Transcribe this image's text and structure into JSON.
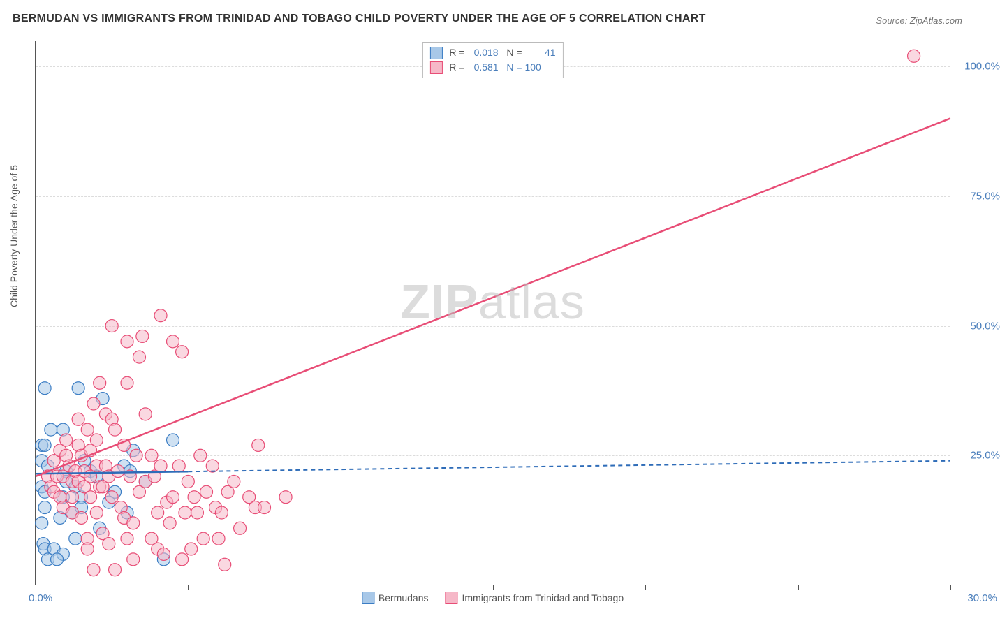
{
  "title": "BERMUDAN VS IMMIGRANTS FROM TRINIDAD AND TOBAGO CHILD POVERTY UNDER THE AGE OF 5 CORRELATION CHART",
  "source_prefix": "Source:",
  "source_name": "ZipAtlas.com",
  "ylabel": "Child Poverty Under the Age of 5",
  "watermark_bold": "ZIP",
  "watermark_rest": "atlas",
  "chart": {
    "type": "scatter",
    "xlim": [
      0,
      30
    ],
    "ylim": [
      0,
      105
    ],
    "yticks": [
      {
        "value": 25,
        "label": "25.0%"
      },
      {
        "value": 50,
        "label": "50.0%"
      },
      {
        "value": 75,
        "label": "75.0%"
      },
      {
        "value": 100,
        "label": "100.0%"
      }
    ],
    "xticks": [
      5,
      10,
      15,
      20,
      25,
      30
    ],
    "xlabel_min": "0.0%",
    "xlabel_max": "30.0%",
    "marker_radius": 9,
    "series": [
      {
        "name": "Bermudans",
        "fill": "#a8c8e8",
        "fill_opacity": 0.55,
        "stroke": "#3b7dc4",
        "r_value": "0.018",
        "n_value": "41",
        "line": {
          "solid_end_x": 5,
          "y_at_0": 21.5,
          "y_at_30": 24.0,
          "color": "#2e6cb8",
          "width": 2.5,
          "dash": "6 5"
        },
        "points": [
          [
            0.2,
            27
          ],
          [
            0.3,
            27
          ],
          [
            0.2,
            24
          ],
          [
            0.4,
            23
          ],
          [
            0.2,
            19
          ],
          [
            0.3,
            18
          ],
          [
            0.3,
            15
          ],
          [
            0.2,
            12
          ],
          [
            0.25,
            8
          ],
          [
            0.3,
            7
          ],
          [
            0.6,
            7
          ],
          [
            0.9,
            6
          ],
          [
            0.4,
            5
          ],
          [
            0.7,
            5
          ],
          [
            0.3,
            38
          ],
          [
            0.5,
            30
          ],
          [
            0.9,
            30
          ],
          [
            1.4,
            38
          ],
          [
            1.0,
            22
          ],
          [
            1.0,
            20
          ],
          [
            1.3,
            19
          ],
          [
            0.9,
            17
          ],
          [
            1.5,
            17
          ],
          [
            1.2,
            14
          ],
          [
            0.8,
            13
          ],
          [
            1.6,
            24
          ],
          [
            1.8,
            22
          ],
          [
            1.5,
            15
          ],
          [
            1.3,
            9
          ],
          [
            2.0,
            21
          ],
          [
            2.2,
            36
          ],
          [
            2.6,
            18
          ],
          [
            2.4,
            16
          ],
          [
            2.9,
            23
          ],
          [
            3.1,
            22
          ],
          [
            3.2,
            26
          ],
          [
            3.6,
            20
          ],
          [
            4.5,
            28
          ],
          [
            4.2,
            5
          ],
          [
            3.0,
            14
          ],
          [
            2.1,
            11
          ]
        ]
      },
      {
        "name": "Immigrants from Trinidad and Tobago",
        "fill": "#f6b8c8",
        "fill_opacity": 0.55,
        "stroke": "#e84d76",
        "r_value": "0.581",
        "n_value": "100",
        "line": {
          "solid_end_x": 30,
          "y_at_0": 21,
          "y_at_30": 90,
          "color": "#e84d76",
          "width": 2.5,
          "dash": null
        },
        "points": [
          [
            0.4,
            21
          ],
          [
            0.5,
            19
          ],
          [
            0.6,
            24
          ],
          [
            0.7,
            21
          ],
          [
            0.6,
            18
          ],
          [
            0.8,
            26
          ],
          [
            0.9,
            21
          ],
          [
            1.0,
            25
          ],
          [
            1.0,
            28
          ],
          [
            1.1,
            23
          ],
          [
            0.8,
            17
          ],
          [
            0.9,
            15
          ],
          [
            1.2,
            20
          ],
          [
            1.2,
            17
          ],
          [
            1.2,
            14
          ],
          [
            1.3,
            22
          ],
          [
            1.4,
            20
          ],
          [
            1.4,
            27
          ],
          [
            1.4,
            32
          ],
          [
            1.5,
            25
          ],
          [
            1.5,
            13
          ],
          [
            1.6,
            19
          ],
          [
            1.6,
            22
          ],
          [
            1.7,
            30
          ],
          [
            1.7,
            9
          ],
          [
            1.7,
            7
          ],
          [
            1.8,
            21
          ],
          [
            1.8,
            26
          ],
          [
            1.8,
            17
          ],
          [
            1.9,
            35
          ],
          [
            1.9,
            3
          ],
          [
            2.0,
            28
          ],
          [
            2.0,
            23
          ],
          [
            2.0,
            14
          ],
          [
            2.1,
            39
          ],
          [
            2.1,
            19
          ],
          [
            2.2,
            19
          ],
          [
            2.2,
            10
          ],
          [
            2.3,
            33
          ],
          [
            2.3,
            23
          ],
          [
            2.4,
            21
          ],
          [
            2.4,
            8
          ],
          [
            2.5,
            17
          ],
          [
            2.5,
            32
          ],
          [
            2.6,
            3
          ],
          [
            2.6,
            30
          ],
          [
            2.7,
            22
          ],
          [
            2.8,
            15
          ],
          [
            2.9,
            27
          ],
          [
            2.9,
            13
          ],
          [
            3.0,
            9
          ],
          [
            3.0,
            39
          ],
          [
            3.1,
            21
          ],
          [
            3.2,
            12
          ],
          [
            3.2,
            5
          ],
          [
            3.3,
            25
          ],
          [
            3.4,
            18
          ],
          [
            3.5,
            48
          ],
          [
            3.4,
            44
          ],
          [
            3.6,
            20
          ],
          [
            3.6,
            33
          ],
          [
            3.8,
            25
          ],
          [
            3.8,
            9
          ],
          [
            4.0,
            14
          ],
          [
            4.0,
            7
          ],
          [
            3.9,
            21
          ],
          [
            4.1,
            23
          ],
          [
            4.1,
            52
          ],
          [
            4.2,
            6
          ],
          [
            4.3,
            16
          ],
          [
            4.4,
            12
          ],
          [
            4.5,
            47
          ],
          [
            4.5,
            17
          ],
          [
            4.7,
            23
          ],
          [
            4.8,
            5
          ],
          [
            4.9,
            14
          ],
          [
            5.0,
            20
          ],
          [
            5.1,
            7
          ],
          [
            5.2,
            17
          ],
          [
            5.3,
            14
          ],
          [
            5.4,
            25
          ],
          [
            5.5,
            9
          ],
          [
            5.6,
            18
          ],
          [
            5.8,
            23
          ],
          [
            5.9,
            15
          ],
          [
            6.0,
            9
          ],
          [
            6.1,
            14
          ],
          [
            6.2,
            4
          ],
          [
            6.3,
            18
          ],
          [
            6.5,
            20
          ],
          [
            6.7,
            11
          ],
          [
            7.0,
            17
          ],
          [
            7.3,
            27
          ],
          [
            7.2,
            15
          ],
          [
            7.5,
            15
          ],
          [
            8.2,
            17
          ],
          [
            4.8,
            45
          ],
          [
            3.0,
            47
          ],
          [
            2.5,
            50
          ],
          [
            28.8,
            102
          ]
        ]
      }
    ],
    "legend_swatch": {
      "blue_fill": "#a8c8e8",
      "blue_border": "#3b7dc4",
      "pink_fill": "#f6b8c8",
      "pink_border": "#e84d76"
    }
  }
}
